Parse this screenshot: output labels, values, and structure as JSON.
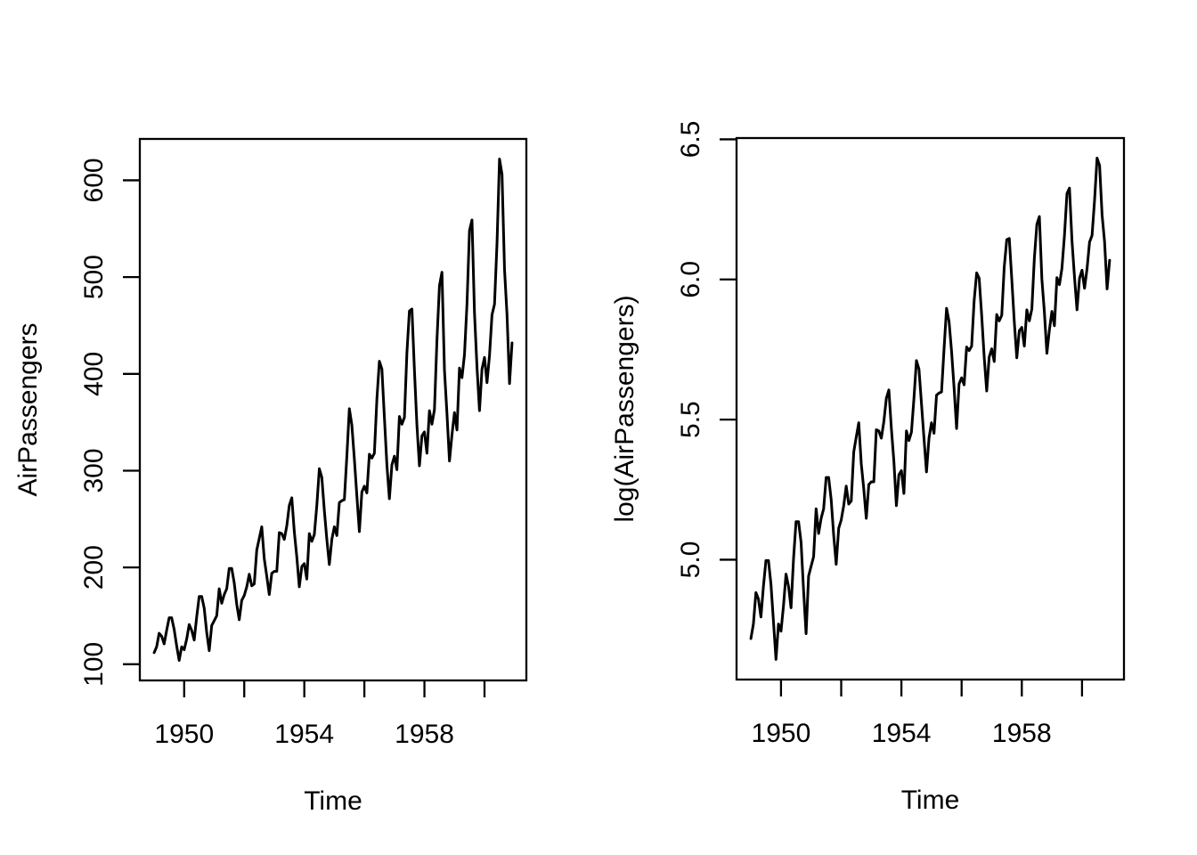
{
  "figure": {
    "background_color": "#ffffff",
    "foreground_color": "#000000"
  },
  "chart_data": [
    {
      "type": "line",
      "title": "",
      "xlabel": "Time",
      "ylabel": "AirPassengers",
      "y_transform": "identity",
      "xlim": [
        1949,
        1960.917
      ],
      "ylim": [
        104,
        622
      ],
      "range_padding": 0.04,
      "grid": false,
      "legend": "none",
      "line_color": "#000000",
      "xticks": {
        "values": [
          1950,
          1952,
          1954,
          1956,
          1958,
          1960
        ],
        "labels": [
          "1950",
          "",
          "1954",
          "",
          "1958",
          ""
        ]
      },
      "yticks": {
        "values": [
          100,
          200,
          300,
          400,
          500,
          600
        ],
        "labels": [
          "100",
          "200",
          "300",
          "400",
          "500",
          "600"
        ]
      },
      "series": [
        {
          "name": "AirPassengers",
          "start_year": 1949,
          "frequency": 12,
          "values": [
            112,
            118,
            132,
            129,
            121,
            135,
            148,
            148,
            136,
            119,
            104,
            118,
            115,
            126,
            141,
            135,
            125,
            149,
            170,
            170,
            158,
            133,
            114,
            140,
            145,
            150,
            178,
            163,
            172,
            178,
            199,
            199,
            184,
            162,
            146,
            166,
            171,
            180,
            193,
            181,
            183,
            218,
            230,
            242,
            209,
            191,
            172,
            194,
            196,
            196,
            236,
            235,
            229,
            243,
            264,
            272,
            237,
            211,
            180,
            201,
            204,
            188,
            235,
            227,
            234,
            264,
            302,
            293,
            259,
            229,
            203,
            229,
            242,
            233,
            267,
            269,
            270,
            315,
            364,
            347,
            312,
            274,
            237,
            278,
            284,
            277,
            317,
            313,
            318,
            374,
            413,
            405,
            355,
            306,
            271,
            306,
            315,
            301,
            356,
            348,
            355,
            422,
            465,
            467,
            404,
            347,
            305,
            336,
            340,
            318,
            362,
            348,
            363,
            435,
            491,
            505,
            404,
            359,
            310,
            337,
            360,
            342,
            406,
            396,
            420,
            472,
            548,
            559,
            463,
            407,
            362,
            405,
            417,
            391,
            419,
            461,
            472,
            535,
            622,
            606,
            508,
            461,
            390,
            432
          ]
        }
      ]
    },
    {
      "type": "line",
      "title": "",
      "xlabel": "Time",
      "ylabel": "log(AirPassengers)",
      "y_transform": "log",
      "xlim": [
        1949,
        1960.917
      ],
      "ylim": [
        4.644,
        6.433
      ],
      "range_padding": 0.04,
      "grid": false,
      "legend": "none",
      "line_color": "#000000",
      "xticks": {
        "values": [
          1950,
          1952,
          1954,
          1956,
          1958,
          1960
        ],
        "labels": [
          "1950",
          "",
          "1954",
          "",
          "1958",
          ""
        ]
      },
      "yticks": {
        "values": [
          5.0,
          5.5,
          6.0,
          6.5
        ],
        "labels": [
          "5.0",
          "5.5",
          "6.0",
          "6.5"
        ]
      },
      "series": [
        {
          "name": "log(AirPassengers)",
          "start_year": 1949,
          "frequency": 12,
          "values": [
            112,
            118,
            132,
            129,
            121,
            135,
            148,
            148,
            136,
            119,
            104,
            118,
            115,
            126,
            141,
            135,
            125,
            149,
            170,
            170,
            158,
            133,
            114,
            140,
            145,
            150,
            178,
            163,
            172,
            178,
            199,
            199,
            184,
            162,
            146,
            166,
            171,
            180,
            193,
            181,
            183,
            218,
            230,
            242,
            209,
            191,
            172,
            194,
            196,
            196,
            236,
            235,
            229,
            243,
            264,
            272,
            237,
            211,
            180,
            201,
            204,
            188,
            235,
            227,
            234,
            264,
            302,
            293,
            259,
            229,
            203,
            229,
            242,
            233,
            267,
            269,
            270,
            315,
            364,
            347,
            312,
            274,
            237,
            278,
            284,
            277,
            317,
            313,
            318,
            374,
            413,
            405,
            355,
            306,
            271,
            306,
            315,
            301,
            356,
            348,
            355,
            422,
            465,
            467,
            404,
            347,
            305,
            336,
            340,
            318,
            362,
            348,
            363,
            435,
            491,
            505,
            404,
            359,
            310,
            337,
            360,
            342,
            406,
            396,
            420,
            472,
            548,
            559,
            463,
            407,
            362,
            405,
            417,
            391,
            419,
            461,
            472,
            535,
            622,
            606,
            508,
            461,
            390,
            432
          ]
        }
      ]
    }
  ]
}
